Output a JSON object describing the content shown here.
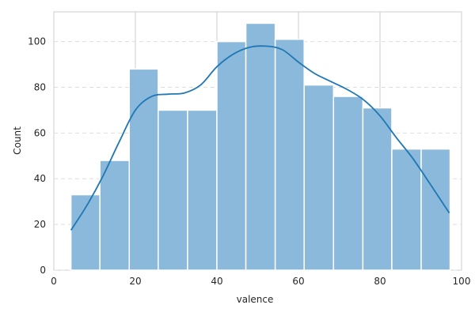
{
  "chart_data": {
    "type": "bar",
    "subtype": "histogram-with-kde",
    "title": "",
    "xlabel": "valence",
    "ylabel": "Count",
    "xlim": [
      0,
      100
    ],
    "ylim": [
      0,
      113
    ],
    "xticks": [
      0,
      20,
      40,
      60,
      80,
      100
    ],
    "yticks": [
      0,
      20,
      40,
      60,
      80,
      100
    ],
    "xgrid": "solid",
    "ygrid": "dashed",
    "bar_color": "#8ab9db",
    "bar_edge_color": "#ffffff",
    "kde_color": "#1f77b4",
    "bins": [
      {
        "x0": 4.2,
        "x1": 11.3,
        "count": 33
      },
      {
        "x0": 11.3,
        "x1": 18.5,
        "count": 48
      },
      {
        "x0": 18.5,
        "x1": 25.6,
        "count": 88
      },
      {
        "x0": 25.6,
        "x1": 32.8,
        "count": 70
      },
      {
        "x0": 32.8,
        "x1": 40.0,
        "count": 70
      },
      {
        "x0": 40.0,
        "x1": 47.1,
        "count": 100
      },
      {
        "x0": 47.1,
        "x1": 54.3,
        "count": 108
      },
      {
        "x0": 54.3,
        "x1": 61.4,
        "count": 101
      },
      {
        "x0": 61.4,
        "x1": 68.6,
        "count": 81
      },
      {
        "x0": 68.6,
        "x1": 75.8,
        "count": 76
      },
      {
        "x0": 75.8,
        "x1": 82.9,
        "count": 71
      },
      {
        "x0": 82.9,
        "x1": 90.1,
        "count": 53
      },
      {
        "x0": 90.1,
        "x1": 97.2,
        "count": 53
      }
    ],
    "kde": {
      "x": [
        4.2,
        8,
        12,
        16,
        20,
        24,
        28,
        32,
        36,
        40,
        44,
        48,
        52,
        56,
        60,
        64,
        68,
        72,
        76,
        80,
        84,
        88,
        92,
        97
      ],
      "y": [
        17.5,
        28,
        41,
        56,
        70,
        76,
        77,
        77.5,
        81,
        89,
        94.5,
        97.5,
        98,
        96.5,
        91,
        86,
        82.5,
        79,
        74.5,
        67.5,
        58,
        49,
        38.5,
        25
      ]
    }
  }
}
